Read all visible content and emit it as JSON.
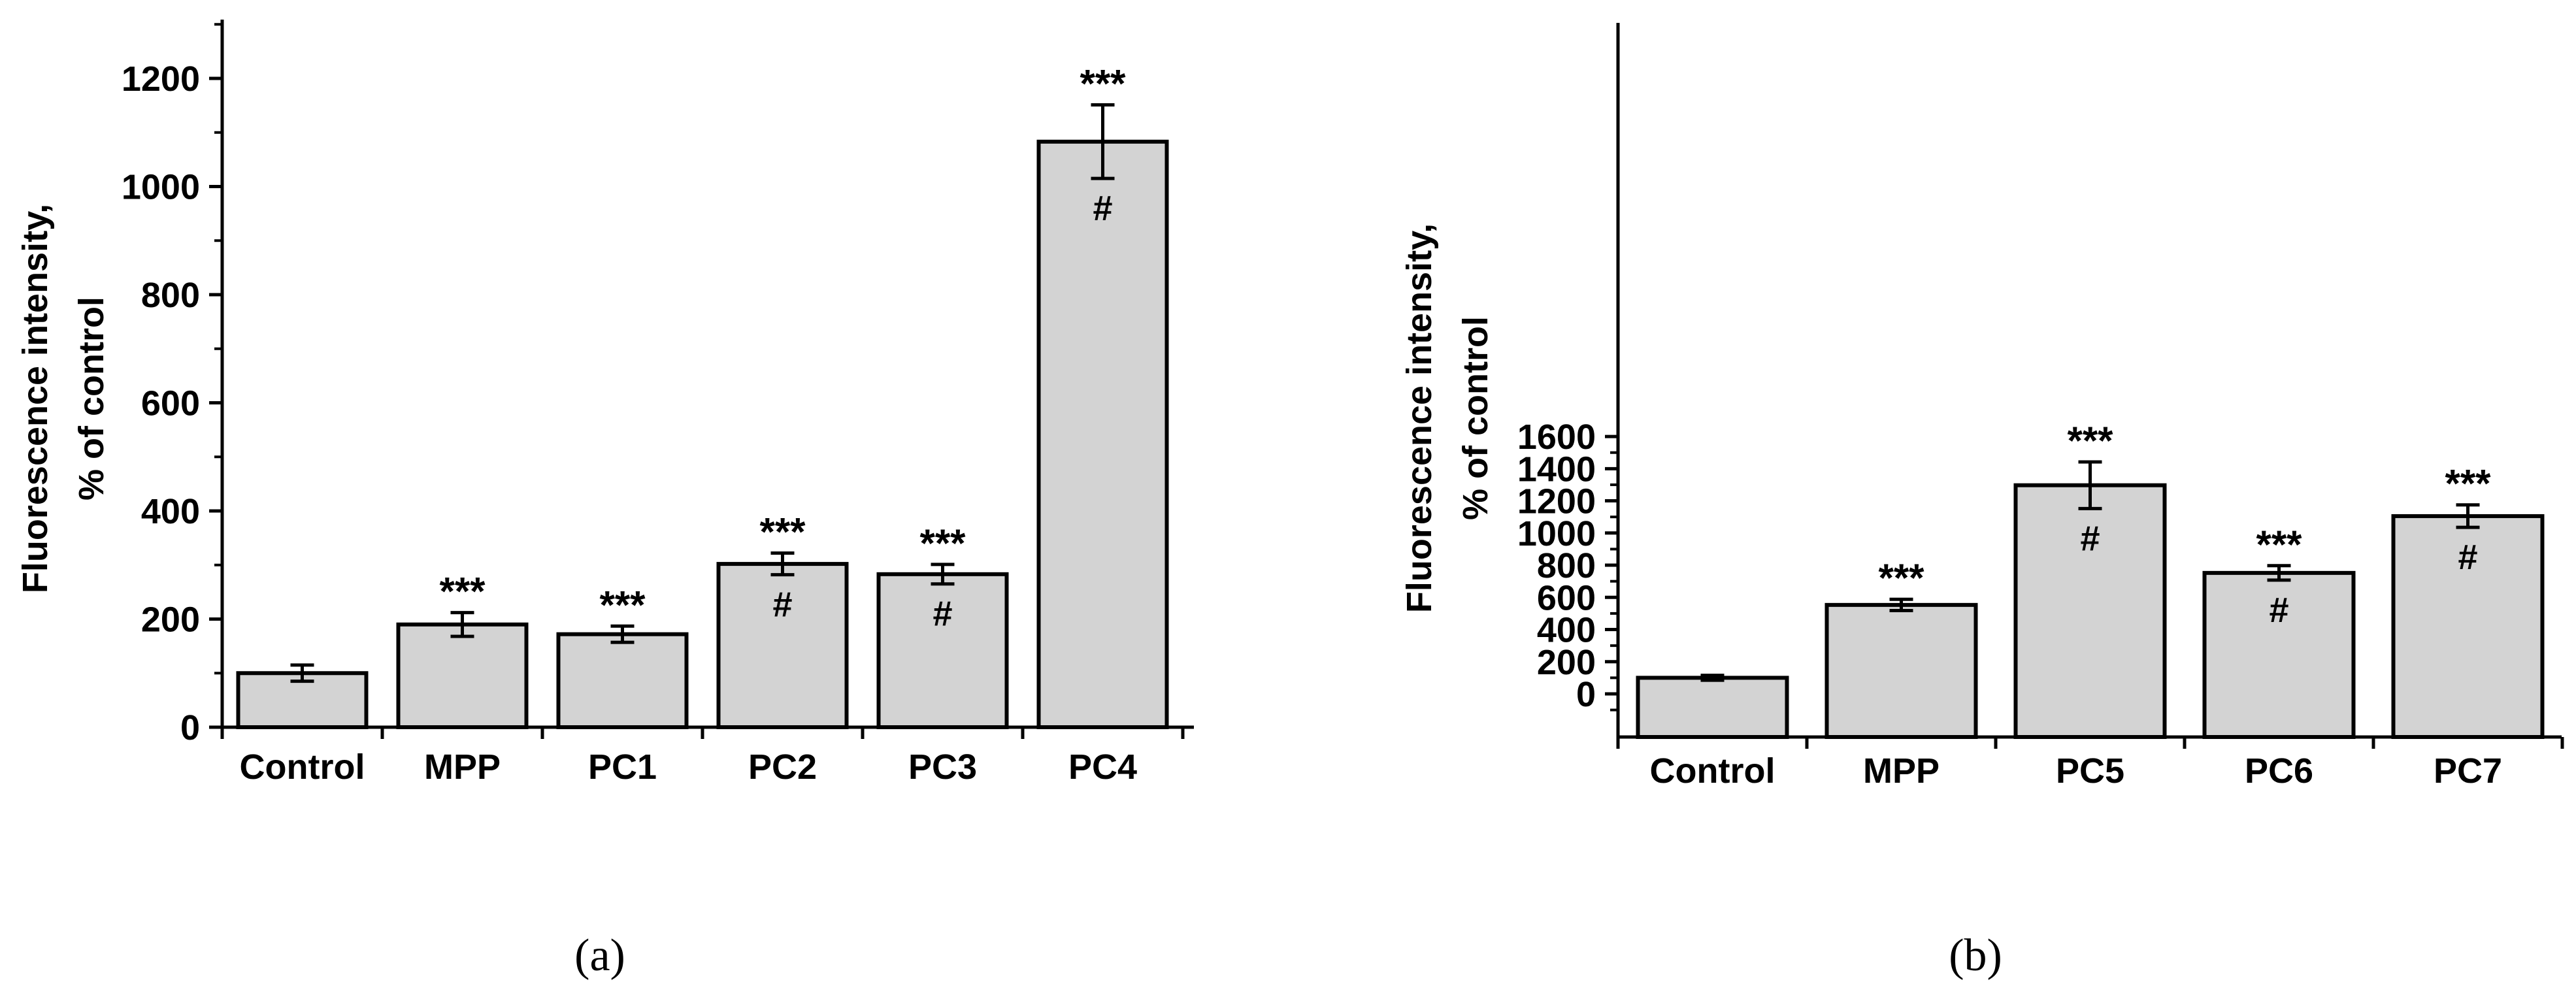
{
  "chart_data": [
    {
      "type": "bar",
      "panel_label": "(a)",
      "ylabel_line1": "Fluorescence intensity,",
      "ylabel_line2": "% of control",
      "categories": [
        "Control",
        "MPP",
        "PC1",
        "PC2",
        "PC3",
        "PC4"
      ],
      "values": [
        100,
        190,
        172,
        302,
        283,
        1083
      ],
      "errors": [
        15,
        22,
        15,
        20,
        18,
        68
      ],
      "significance": [
        "",
        "***",
        "***",
        "***",
        "***",
        "***"
      ],
      "hash": [
        "",
        "",
        "",
        "#",
        "#",
        "#"
      ],
      "ylim": [
        0,
        1300
      ],
      "yticks": [
        0,
        200,
        400,
        600,
        800,
        1000,
        1200
      ],
      "grid": false
    },
    {
      "type": "bar",
      "panel_label": "(b)",
      "ylabel_line1": "Fluorescence intensity,",
      "ylabel_line2": "% of control",
      "categories": [
        "Control",
        "MPP",
        "PC5",
        "PC6",
        "PC7"
      ],
      "values": [
        100,
        553,
        1297,
        752,
        1105
      ],
      "errors": [
        15,
        35,
        145,
        45,
        70
      ],
      "significance": [
        "",
        "***",
        "***",
        "***",
        "***"
      ],
      "hash": [
        "",
        "",
        "#",
        "#",
        "#"
      ],
      "ylim": [
        -100,
        1650
      ],
      "yticks": [
        0,
        200,
        400,
        600,
        800,
        1000,
        1200,
        1400,
        1600
      ],
      "grid": false
    }
  ]
}
